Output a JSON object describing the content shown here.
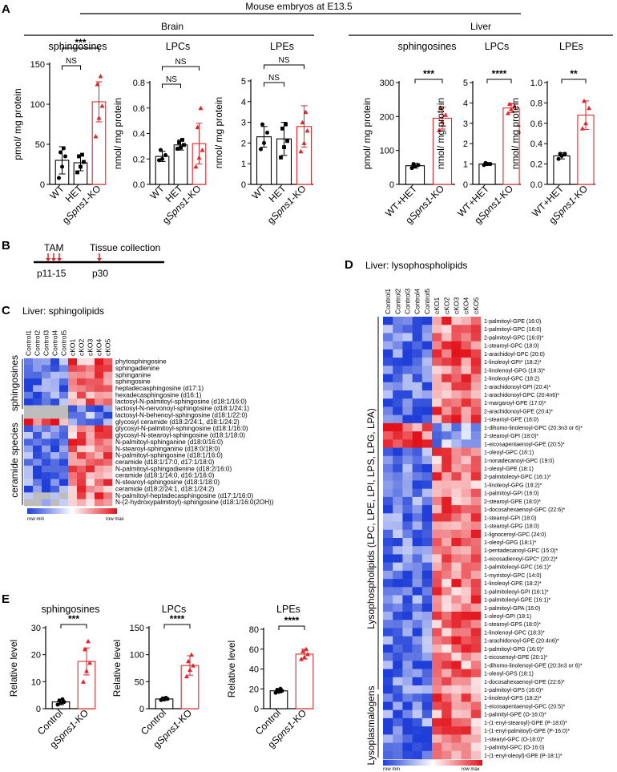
{
  "colors": {
    "wt": "#000000",
    "ko": "#e0262b",
    "bar": "#ffffff",
    "hmBlue": "#1f3fd8",
    "hmWhite": "#ffffff",
    "hmRed": "#e3121a",
    "hmGrey": "#bdbdbd",
    "arrow": "#e0262b"
  },
  "panels": {
    "A": "A",
    "B": "B",
    "C": "C",
    "D": "D",
    "E": "E"
  },
  "header": {
    "top": "Mouse embryos at E13.5",
    "brain": "Brain",
    "liver": "Liver"
  },
  "timeline": {
    "tam": "TAM",
    "tissue": "Tissue collection",
    "p1": "p11-15",
    "p2": "p30"
  },
  "panelC": {
    "title": "Liver: sphingolipids",
    "groups": [
      "sphingosines",
      "ceramide species"
    ],
    "legend_min": "row min",
    "legend_max": "row max"
  },
  "panelD": {
    "title": "Liver: lysophospholipids",
    "groups": [
      "Lysophospholipids (LPC, LPE, LPI, LPS, LPG, LPA)",
      "Lysoplasmalogens"
    ],
    "legend_min": "row min",
    "legend_max": "row max"
  },
  "chart_data": [
    {
      "id": "A1",
      "type": "bar",
      "title": "sphingosines",
      "ylabel": "pmol/ mg protein",
      "ylim": [
        0,
        150
      ],
      "yticks": [
        0,
        50,
        100,
        150
      ],
      "categories": [
        "WT",
        "HET",
        "gSpns1-KO"
      ],
      "values": [
        30,
        27,
        103
      ],
      "errors": [
        17,
        10,
        25
      ],
      "points": [
        [
          8,
          22,
          35,
          40,
          45
        ],
        [
          15,
          22,
          28,
          35,
          37
        ],
        [
          60,
          83,
          98,
          125,
          135
        ]
      ],
      "sig": [
        {
          "a": 0,
          "b": 1,
          "label": "NS"
        },
        {
          "a": 0,
          "b": 2,
          "label": "***"
        }
      ]
    },
    {
      "id": "A2",
      "type": "bar",
      "title": "LPCs",
      "ylabel": "nmol/ mg protein",
      "ylim": [
        0,
        0.8
      ],
      "yticks": [
        0.0,
        0.2,
        0.4,
        0.6,
        0.8
      ],
      "categories": [
        "WT",
        "HET",
        "gSpns1-KO"
      ],
      "values": [
        0.22,
        0.31,
        0.32
      ],
      "errors": [
        0.04,
        0.04,
        0.16
      ],
      "points": [
        [
          0.19,
          0.2,
          0.23,
          0.27
        ],
        [
          0.28,
          0.29,
          0.31,
          0.33,
          0.35
        ],
        [
          0.14,
          0.21,
          0.27,
          0.45,
          0.6
        ]
      ],
      "sig": [
        {
          "a": 0,
          "b": 1,
          "label": "NS"
        },
        {
          "a": 0,
          "b": 2,
          "label": "NS"
        }
      ]
    },
    {
      "id": "A3",
      "type": "bar",
      "title": "LPEs",
      "ylabel": "nmol/ mg protein",
      "ylim": [
        0,
        5
      ],
      "yticks": [
        0,
        1,
        2,
        3,
        4,
        5
      ],
      "categories": [
        "WT",
        "HET",
        "gSpns1-KO"
      ],
      "values": [
        2.3,
        2.2,
        2.8
      ],
      "errors": [
        0.5,
        0.8,
        1.0
      ],
      "points": [
        [
          1.7,
          2.0,
          2.5,
          2.9
        ],
        [
          1.3,
          1.8,
          2.1,
          2.7,
          2.9
        ],
        [
          1.6,
          2.0,
          2.6,
          3.0,
          3.5
        ]
      ],
      "sig": [
        {
          "a": 0,
          "b": 1,
          "label": "NS"
        },
        {
          "a": 0,
          "b": 2,
          "label": "NS"
        }
      ]
    },
    {
      "id": "A4",
      "type": "bar",
      "title": "sphingosines",
      "ylabel": "pmol/ mg protein",
      "ylim": [
        0,
        300
      ],
      "yticks": [
        0,
        100,
        200,
        300
      ],
      "categories": [
        "WT+HET",
        "gSpns1-KO"
      ],
      "values": [
        55,
        195
      ],
      "errors": [
        7,
        32
      ],
      "points": [
        [
          48,
          53,
          57,
          60
        ],
        [
          160,
          185,
          205,
          225
        ]
      ],
      "sig": [
        {
          "a": 0,
          "b": 1,
          "label": "***"
        }
      ]
    },
    {
      "id": "A5",
      "type": "bar",
      "title": "LPCs",
      "ylabel": "nmol/ mg protein",
      "ylim": [
        0,
        5
      ],
      "yticks": [
        0,
        1,
        2,
        3,
        4,
        5
      ],
      "categories": [
        "WT+HET",
        "gSpns1-KO"
      ],
      "values": [
        1.0,
        3.75
      ],
      "errors": [
        0.07,
        0.22
      ],
      "points": [
        [
          0.95,
          1.0,
          1.0,
          1.05
        ],
        [
          3.5,
          3.7,
          3.85,
          3.95
        ]
      ],
      "sig": [
        {
          "a": 0,
          "b": 1,
          "label": "****"
        }
      ]
    },
    {
      "id": "A6",
      "type": "bar",
      "title": "LPEs",
      "ylabel": "nmol/ mg protein",
      "ylim": [
        0,
        1
      ],
      "yticks": [
        0.0,
        0.2,
        0.4,
        0.6,
        0.8,
        1.0
      ],
      "categories": [
        "WT+HET",
        "gSpns1-KO"
      ],
      "values": [
        0.28,
        0.68
      ],
      "errors": [
        0.03,
        0.14
      ],
      "points": [
        [
          0.25,
          0.28,
          0.3,
          0.3
        ],
        [
          0.55,
          0.6,
          0.75,
          0.82
        ]
      ],
      "sig": [
        {
          "a": 0,
          "b": 1,
          "label": "**"
        }
      ]
    },
    {
      "id": "E1",
      "type": "bar",
      "title": "sphingosines",
      "ylabel": "Relative level",
      "ylim": [
        0,
        30
      ],
      "yticks": [
        0,
        10,
        20,
        30
      ],
      "categories": [
        "Control",
        "gSpns1-KO"
      ],
      "values": [
        2.5,
        17.5
      ],
      "errors": [
        1,
        5
      ],
      "points": [
        [
          1.5,
          2,
          2.5,
          3,
          3.5
        ],
        [
          10,
          14,
          17,
          22,
          25
        ]
      ],
      "sig": [
        {
          "a": 0,
          "b": 1,
          "label": "***"
        }
      ]
    },
    {
      "id": "E2",
      "type": "bar",
      "title": "LPCs",
      "ylabel": "Relative level",
      "ylim": [
        0,
        150
      ],
      "yticks": [
        0,
        50,
        100,
        150
      ],
      "categories": [
        "Control",
        "gSpns1-KO"
      ],
      "values": [
        18,
        80
      ],
      "errors": [
        2,
        18
      ],
      "points": [
        [
          16,
          17,
          18,
          19,
          20
        ],
        [
          60,
          72,
          80,
          88,
          100
        ]
      ],
      "sig": [
        {
          "a": 0,
          "b": 1,
          "label": "****"
        }
      ]
    },
    {
      "id": "E3",
      "type": "bar",
      "title": "LPEs",
      "ylabel": "Relative level",
      "ylim": [
        0,
        80
      ],
      "yticks": [
        0,
        20,
        40,
        60,
        80
      ],
      "categories": [
        "Control",
        "gSpns1-KO"
      ],
      "values": [
        18,
        55
      ],
      "errors": [
        2,
        5
      ],
      "points": [
        [
          16,
          17,
          18,
          19,
          20
        ],
        [
          50,
          52,
          55,
          58,
          60
        ]
      ],
      "sig": [
        {
          "a": 0,
          "b": 1,
          "label": "****"
        }
      ]
    },
    {
      "id": "C",
      "type": "heatmap",
      "columns": [
        "Control1",
        "Control2",
        "Control3",
        "Control4",
        "Control5",
        "cKO1",
        "cKO2",
        "cKO3",
        "cKO4",
        "cKO5"
      ],
      "rows": [
        "phytosphingosine",
        "sphingadienine",
        "sphinganine",
        "sphingosine",
        "heptadecasphingosine (d17:1)",
        "hexadecasphingosine (d16:1)",
        "lactosyl-N-palmitoyl-sphingosine (d18:1/16:0)",
        "lactosyl-N-nervonoyl-sphingosine (d18:1/24:1)",
        "lactosyl-N-behenoyl-sphingosine (d18:1/22:0)",
        "glycosyl ceramide (d18:2/24:1, d18:1/24:2)",
        "glycosyl-N-palmitoyl-sphingosine (d18:1/16:0)",
        "glycosyl-N-stearoyl-sphingosine (d18:1/18:0)",
        "N-palmitoyl-sphinganine (d18:0/16:0)",
        "N-stearoyl-sphinganine (d18:0/18:0)",
        "N-palmitoyl-sphingosine (d18:1/16:0)",
        "ceramide (d18:1/17:0, d17:1/18:0)",
        "N-palmitoyl-sphingadienine (d18:2/16:0)",
        "ceramide (d18:1/14:0, d16:1/16:0)",
        "N-stearoyl-sphingosine (d18:1/18:0)",
        "ceramide (d18:2/24:1, d18:1/24:2)",
        "N-palmitoyl-heptadecasphingosine (d17:1/16:0)",
        "N-(2-hydroxypalmitoyl)-sphingosine (d18:1/16:0(2OH))"
      ]
    },
    {
      "id": "D",
      "type": "heatmap",
      "columns": [
        "Control1",
        "Control2",
        "Control3",
        "Control4",
        "Control5",
        "cKO1",
        "cKO2",
        "cKO3",
        "cKO4",
        "cKO5"
      ],
      "rows": [
        "1-palmitoyl-GPE (16:0)",
        "1-palmitoyl-GPC (16:0)",
        "2-palmitoyl-GPC (16:0)*",
        "1-stearoyl-GPC (18:0)",
        "1-arachidoyl-GPC (20:0)",
        "1-linoleoyl-GPI* (18:2)*",
        "1-linolenoyl-GPG (18:3)*",
        "1-linoleoyl-GPC (18:2)",
        "1-arachidonoyl-GPI (20:4)*",
        "1-arachidonoyl-GPC (20:4n6)*",
        "1-margaroyl-GPE (17:0)*",
        "2-arachidonoyl-GPE (20:4)*",
        "1-stearoyl-GPE (18:0)",
        "1-dihomo-linolenoyl-GPC (20:3n3 or 6)*",
        "2-stearoyl-GPI (18:0)*",
        "1-eicosapentaenoyl-GPE (20:5)*",
        "1-oleoyl-GPC (18:1)",
        "1-nonadecanoyl-GPC (19:0)",
        "1-oleoyl-GPE (18:1)",
        "2-palmitoleoyl-GPC (16:1)*",
        "1-linoleoyl-GPG (18:2)*",
        "1-palmitoyl-GPI (16:0)",
        "2-stearoyl-GPE (18:0)*",
        "1-docosahexaenoyl-GPC (22:6)*",
        "1-stearoyl-GPI (18:0)",
        "1-stearoyl-GPG (18:0)",
        "1-lignoceroyl-GPC (24:0)",
        "1-oleoyl-GPG (18:1)*",
        "1-pentadecanoyl-GPC (15:0)*",
        "1-eicosadienoyl-GPC* (20:2)*",
        "1-palmitoleoyl-GPC (16:1)*",
        "1-myristoyl-GPC (14:0)",
        "1-linoleoyl-GPE (18:2)*",
        "1-palmitoleoyl-GPI (16:1)*",
        "1-palmitoleoyl-GPE (16:1)*",
        "1-palmitoyl-GPA (16:0)",
        "1-oleoyl-GPI (18:1)",
        "1-stearoyl-GPS (18:0)*",
        "1-linolenoyl-GPC (18:3)*",
        "1-arachidonoyl-GPE (20:4n6)*",
        "1-palmitoyl-GPG (16:0)*",
        "1-eicosenoyl-GPE (20:1)*",
        "1-dihomo-linolenoyl-GPE (20:3n3 or 6)*",
        "1-oleoyl-GPS (18:1)",
        "1-docosahexaenoyl-GPE (22:6)*",
        "1-palmitoyl-GPS (16:0)*",
        "1-linoleoyl-GPS (18:2)*",
        "1-eicosapentaenoyl-GPC (20:5)*",
        "1-palmityl-GPE (O-16:0)*",
        "1-(1-enyl-stearoyl)-GPE (P-18:0)*",
        "1-(1-enyl-palmitoyl)-GPE (P-16:0)*",
        "1-stearyl-GPC (O-18:0)*",
        "1-palmityl-GPC (O-16:0)",
        "1-(1-enyl-oleoyl)-GPE (P-18:1)*"
      ]
    }
  ]
}
